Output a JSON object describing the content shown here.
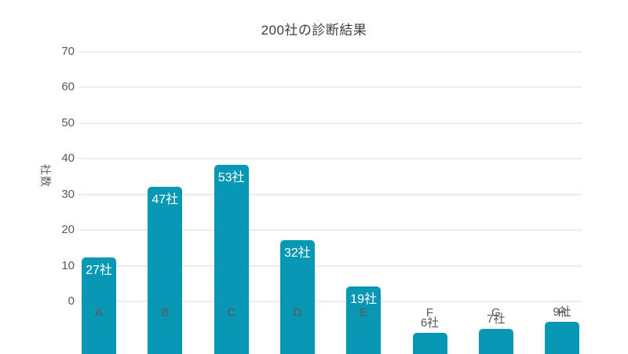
{
  "colors": {
    "background": "#ffffff",
    "bar": "#0998b3",
    "title_text": "#3f3f3f",
    "axis_text": "#595959",
    "grid_line": "#ececec",
    "label_inside": "#ffffff",
    "label_outside": "#595959"
  },
  "chart_data": {
    "type": "bar",
    "title": "200社の診断結果",
    "xlabel": "",
    "ylabel": "社数",
    "ylim": [
      0,
      70
    ],
    "yticks": [
      70,
      60,
      50,
      40,
      30,
      20,
      10,
      0
    ],
    "grid": "horizontal",
    "legend": "none",
    "categories": [
      "A",
      "B",
      "C",
      "D",
      "E",
      "F",
      "G",
      "H"
    ],
    "values": [
      27,
      47,
      53,
      32,
      19,
      6,
      7,
      9
    ],
    "points": [
      {
        "category": "A",
        "value": 27,
        "label": "27社",
        "label_inside": true
      },
      {
        "category": "B",
        "value": 47,
        "label": "47社",
        "label_inside": true
      },
      {
        "category": "C",
        "value": 53,
        "label": "53社",
        "label_inside": true
      },
      {
        "category": "D",
        "value": 32,
        "label": "32社",
        "label_inside": true
      },
      {
        "category": "E",
        "value": 19,
        "label": "19社",
        "label_inside": true
      },
      {
        "category": "F",
        "value": 6,
        "label": "6社",
        "label_inside": false
      },
      {
        "category": "G",
        "value": 7,
        "label": "7社",
        "label_inside": false
      },
      {
        "category": "H",
        "value": 9,
        "label": "9社",
        "label_inside": false
      }
    ]
  }
}
